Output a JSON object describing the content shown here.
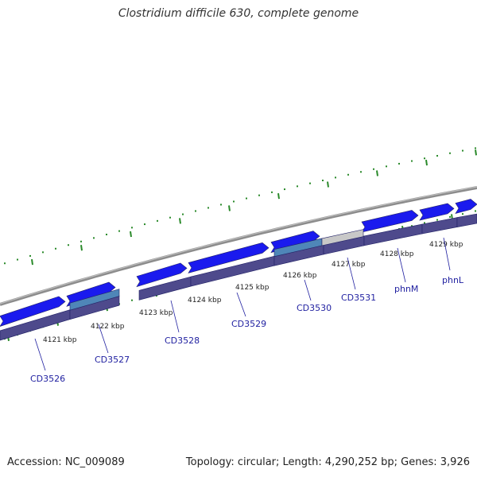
{
  "title": "Clostridium difficile 630, complete genome",
  "accession_text": "Accession: NC_009089",
  "topology_text": "Topology: circular; Length: 4,290,252 bp; Genes: 3,926",
  "colors": {
    "gene_forward": "#1a1aee",
    "gene_highlight": "#4f86b8",
    "gene_gray": "#c8c8c8",
    "track_purple": "#4e4a8c",
    "backbone": "#8c8c8c",
    "tick_green": "#2a8a2a",
    "label_blue": "#1f1fa0"
  },
  "kbp_ticks": [
    "4121 kbp",
    "4122 kbp",
    "4123 kbp",
    "4124 kbp",
    "4125 kbp",
    "4126 kbp",
    "4127 kbp",
    "4128 kbp",
    "4129 kbp"
  ],
  "gene_labels": [
    "CD3526",
    "CD3527",
    "CD3528",
    "CD3529",
    "CD3530",
    "CD3531",
    "phnM",
    "phnL"
  ]
}
